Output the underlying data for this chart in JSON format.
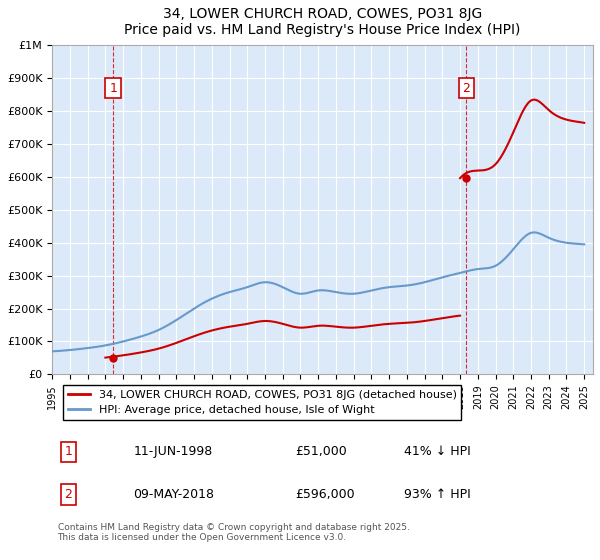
{
  "title": "34, LOWER CHURCH ROAD, COWES, PO31 8JG",
  "subtitle": "Price paid vs. HM Land Registry's House Price Index (HPI)",
  "legend_label_red": "34, LOWER CHURCH ROAD, COWES, PO31 8JG (detached house)",
  "legend_label_blue": "HPI: Average price, detached house, Isle of Wight",
  "footnote": "Contains HM Land Registry data © Crown copyright and database right 2025.\nThis data is licensed under the Open Government Licence v3.0.",
  "sale1_date": 1998.44,
  "sale1_price": 51000,
  "sale1_label": "1",
  "sale1_text": "11-JUN-1998",
  "sale1_pct": "41% ↓ HPI",
  "sale2_date": 2018.35,
  "sale2_price": 596000,
  "sale2_label": "2",
  "sale2_text": "09-MAY-2018",
  "sale2_pct": "93% ↑ HPI",
  "xmin": 1995,
  "xmax": 2025.5,
  "ymin": 0,
  "ymax": 1000000,
  "background_color": "#dce9f8",
  "plot_bg_color": "#dce9f8",
  "red_color": "#cc0000",
  "blue_color": "#6699cc",
  "grid_color": "#ffffff"
}
